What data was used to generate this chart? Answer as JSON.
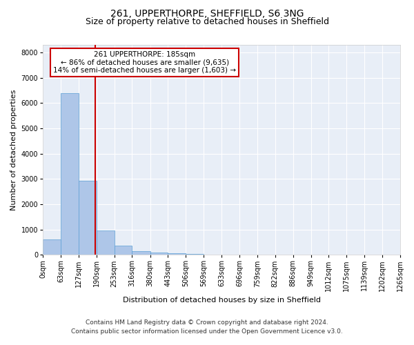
{
  "title": "261, UPPERTHORPE, SHEFFIELD, S6 3NG",
  "subtitle": "Size of property relative to detached houses in Sheffield",
  "xlabel": "Distribution of detached houses by size in Sheffield",
  "ylabel": "Number of detached properties",
  "bin_labels": [
    "0sqm",
    "63sqm",
    "127sqm",
    "190sqm",
    "253sqm",
    "316sqm",
    "380sqm",
    "443sqm",
    "506sqm",
    "569sqm",
    "633sqm",
    "696sqm",
    "759sqm",
    "822sqm",
    "886sqm",
    "949sqm",
    "1012sqm",
    "1075sqm",
    "1139sqm",
    "1202sqm",
    "1265sqm"
  ],
  "bar_heights": [
    600,
    6390,
    2920,
    960,
    360,
    155,
    90,
    70,
    30,
    12,
    5,
    3,
    2,
    1,
    1,
    0,
    0,
    0,
    0,
    0
  ],
  "bin_edges": [
    0,
    63,
    127,
    190,
    253,
    316,
    380,
    443,
    506,
    569,
    633,
    696,
    759,
    822,
    886,
    949,
    1012,
    1075,
    1139,
    1202,
    1265
  ],
  "bar_color": "#aec6e8",
  "bar_edge_color": "#5a9fd4",
  "property_size": 185,
  "vline_color": "#cc0000",
  "annotation_line1": "261 UPPERTHORPE: 185sqm",
  "annotation_line2": "← 86% of detached houses are smaller (9,635)",
  "annotation_line3": "14% of semi-detached houses are larger (1,603) →",
  "annotation_box_color": "#cc0000",
  "ylim": [
    0,
    8300
  ],
  "yticks": [
    0,
    1000,
    2000,
    3000,
    4000,
    5000,
    6000,
    7000,
    8000
  ],
  "background_color": "#e8eef7",
  "footer_line1": "Contains HM Land Registry data © Crown copyright and database right 2024.",
  "footer_line2": "Contains public sector information licensed under the Open Government Licence v3.0.",
  "title_fontsize": 10,
  "subtitle_fontsize": 9,
  "axis_label_fontsize": 8,
  "tick_fontsize": 7,
  "annotation_fontsize": 7.5,
  "footer_fontsize": 6.5
}
